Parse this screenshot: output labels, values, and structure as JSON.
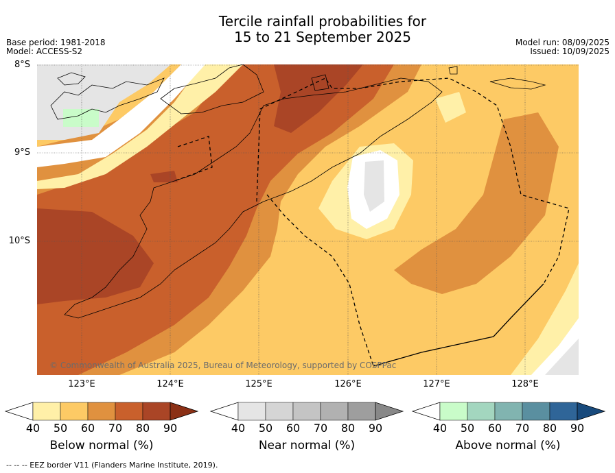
{
  "title_line1": "Tercile rainfall probabilities for",
  "title_line2": "15 to 21 September 2025",
  "meta_left": {
    "base_period": "Base period: 1981-2018",
    "model": "Model: ACCESS-S2"
  },
  "meta_right": {
    "model_run": "Model run: 08/09/2025",
    "issued": "Issued: 10/09/2025"
  },
  "lat_labels": [
    "8°S",
    "9°S",
    "10°S"
  ],
  "lon_labels": [
    "123°E",
    "124°E",
    "125°E",
    "126°E",
    "127°E",
    "128°E"
  ],
  "copyright": "© Commonwealth of Australia 2025, Bureau of Meteorology, supported by COSPPac",
  "footer": "--  --  -- EEZ border V11 (Flanders Marine Institute, 2019).",
  "colorbars": [
    {
      "title": "Below normal (%)",
      "ticks": [
        "40",
        "50",
        "60",
        "70",
        "80",
        "90"
      ],
      "colors": [
        "#fff0a8",
        "#fdca65",
        "#e0913f",
        "#c9602c",
        "#aa4526",
        "#8b3015"
      ]
    },
    {
      "title": "Near normal (%)",
      "ticks": [
        "40",
        "50",
        "60",
        "70",
        "80",
        "90"
      ],
      "colors": [
        "#e5e5e5",
        "#d5d5d5",
        "#c4c4c4",
        "#b1b1b1",
        "#9e9e9e",
        "#888888"
      ]
    },
    {
      "title": "Above normal (%)",
      "ticks": [
        "40",
        "50",
        "60",
        "70",
        "80",
        "90"
      ],
      "colors": [
        "#c9fcc9",
        "#a3d6bf",
        "#81b4b0",
        "#5a8fa0",
        "#2f6598",
        "#184a7c"
      ]
    }
  ]
}
